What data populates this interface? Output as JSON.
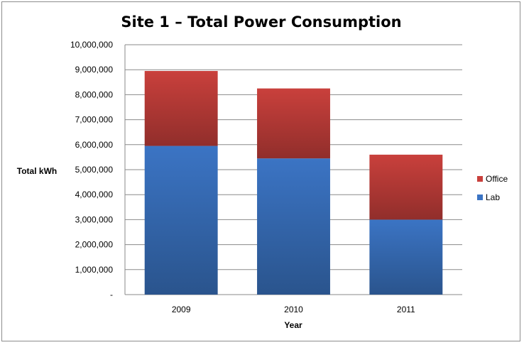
{
  "chart_data": {
    "type": "bar",
    "stacked": true,
    "title": "Site 1 – Total Power Consumption",
    "xlabel": "Year",
    "ylabel": "Total kWh",
    "categories": [
      "2009",
      "2010",
      "2011"
    ],
    "series": [
      {
        "name": "Lab",
        "values": [
          5950000,
          5450000,
          3000000
        ],
        "color": "#3b74c4"
      },
      {
        "name": "Office",
        "values": [
          3000000,
          2800000,
          2600000
        ],
        "color": "#c9403c"
      }
    ],
    "ylim": [
      0,
      10000000
    ],
    "yticks": [
      "-",
      "1,000,000",
      "2,000,000",
      "3,000,000",
      "4,000,000",
      "5,000,000",
      "6,000,000",
      "7,000,000",
      "8,000,000",
      "9,000,000",
      "10,000,000"
    ],
    "grid": true,
    "legend": "right"
  }
}
